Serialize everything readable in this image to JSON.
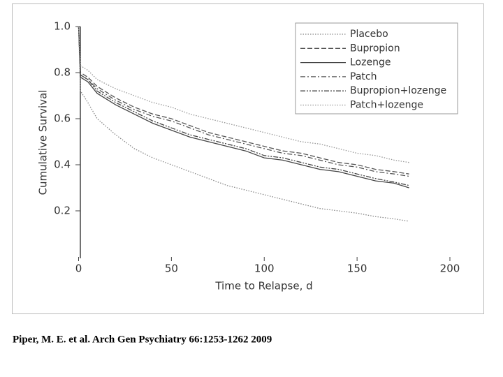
{
  "chart_data": {
    "type": "line",
    "x_label": "Time to Relapse, d",
    "y_label": "Cumulative Survival",
    "x": [
      0,
      1,
      5,
      10,
      20,
      30,
      40,
      50,
      60,
      70,
      80,
      90,
      100,
      110,
      120,
      130,
      140,
      150,
      160,
      170,
      178
    ],
    "series": [
      {
        "name": "Placebo",
        "color": "#888888",
        "style": "dotted",
        "values": [
          1.0,
          0.72,
          0.67,
          0.6,
          0.53,
          0.47,
          0.43,
          0.4,
          0.37,
          0.34,
          0.31,
          0.29,
          0.27,
          0.25,
          0.23,
          0.21,
          0.2,
          0.19,
          0.175,
          0.165,
          0.155
        ]
      },
      {
        "name": "Bupropion",
        "color": "#555555",
        "style": "dashed",
        "values": [
          1.0,
          0.8,
          0.78,
          0.74,
          0.69,
          0.65,
          0.62,
          0.6,
          0.57,
          0.54,
          0.52,
          0.5,
          0.48,
          0.46,
          0.45,
          0.43,
          0.41,
          0.4,
          0.38,
          0.37,
          0.36
        ]
      },
      {
        "name": "Lozenge",
        "color": "#444444",
        "style": "solid",
        "values": [
          1.0,
          0.78,
          0.76,
          0.71,
          0.66,
          0.62,
          0.58,
          0.55,
          0.52,
          0.5,
          0.48,
          0.46,
          0.43,
          0.42,
          0.4,
          0.38,
          0.37,
          0.35,
          0.33,
          0.32,
          0.3
        ]
      },
      {
        "name": "Patch",
        "color": "#555555",
        "style": "dash-dot",
        "values": [
          1.0,
          0.79,
          0.77,
          0.73,
          0.68,
          0.64,
          0.61,
          0.59,
          0.56,
          0.53,
          0.51,
          0.49,
          0.47,
          0.45,
          0.44,
          0.42,
          0.4,
          0.39,
          0.37,
          0.36,
          0.35
        ]
      },
      {
        "name": "Bupropion+lozenge",
        "color": "#444444",
        "style": "dash-dot-dot",
        "values": [
          1.0,
          0.79,
          0.77,
          0.72,
          0.67,
          0.63,
          0.59,
          0.56,
          0.53,
          0.51,
          0.49,
          0.47,
          0.44,
          0.43,
          0.41,
          0.39,
          0.38,
          0.36,
          0.34,
          0.325,
          0.31
        ]
      },
      {
        "name": "Patch+lozenge",
        "color": "#999999",
        "style": "dotted",
        "values": [
          1.0,
          0.83,
          0.81,
          0.77,
          0.73,
          0.7,
          0.67,
          0.65,
          0.62,
          0.6,
          0.58,
          0.56,
          0.54,
          0.52,
          0.5,
          0.49,
          0.47,
          0.45,
          0.44,
          0.42,
          0.41
        ]
      }
    ],
    "xlim": [
      0,
      200
    ],
    "xticks": [
      0,
      50,
      100,
      150,
      200
    ],
    "ylim": [
      0,
      1
    ],
    "yticks": [
      0.2,
      0.4,
      0.6,
      0.8,
      {
        "value": 1,
        "label": "1.0"
      }
    ],
    "grid": false,
    "legend": "upper right"
  },
  "source": "Piper, M. E. et al.  Arch Gen Psychiatry 66:1253-1262 2009"
}
